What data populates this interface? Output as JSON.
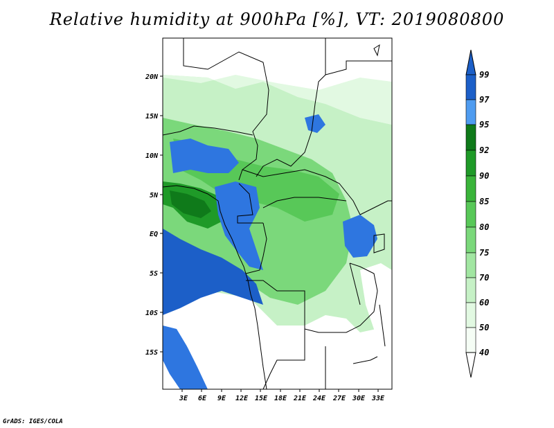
{
  "title": "Relative humidity at 900hPa [%], VT: 2019080800",
  "credit": "GrADS: IGES/COLA",
  "map": {
    "lat_ticks": [
      "20N",
      "15N",
      "10N",
      "5N",
      "EQ",
      "5S",
      "10S",
      "15S"
    ],
    "lon_ticks": [
      "3E",
      "6E",
      "9E",
      "12E",
      "15E",
      "18E",
      "21E",
      "24E",
      "27E",
      "30E",
      "33E"
    ],
    "lon_range": [
      0,
      35
    ],
    "lat_range": [
      -20,
      25
    ]
  },
  "colorbar": {
    "labels": [
      "99",
      "97",
      "95",
      "92",
      "90",
      "85",
      "80",
      "75",
      "70",
      "60",
      "50",
      "40"
    ],
    "colors": [
      "#1c5fc8",
      "#2e76e0",
      "#4f9cf0",
      "#0f7a1a",
      "#1f9a28",
      "#3ab43a",
      "#58c858",
      "#7bd87b",
      "#a2e6a2",
      "#c6f1c6",
      "#e2f9e2",
      "#f5fdf5",
      "#ffffff"
    ]
  }
}
